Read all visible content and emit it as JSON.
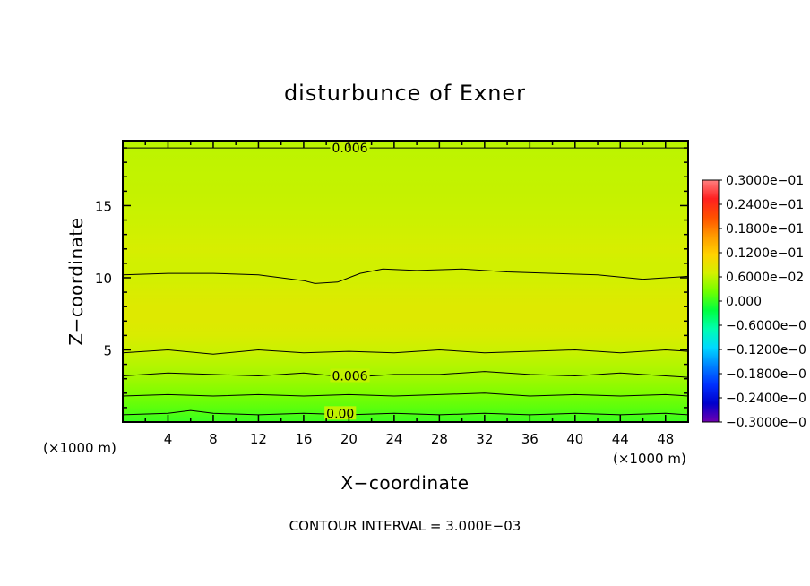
{
  "chart_data": {
    "type": "heatmap",
    "title": "disturbunce of Exner",
    "xlabel": "X−coordinate",
    "ylabel": "Z−coordinate",
    "x_unit_left": "(×1000 m)",
    "x_unit_right": "(×1000 m)",
    "xlim": [
      0,
      50
    ],
    "ylim": [
      0,
      19.5
    ],
    "x_ticks": [
      4,
      8,
      12,
      16,
      20,
      24,
      28,
      32,
      36,
      40,
      44,
      48
    ],
    "y_ticks": [
      5,
      10,
      15
    ],
    "contour_labels": [
      {
        "text": "0.006",
        "x": 18.5,
        "z": 19.0
      },
      {
        "text": "0.006",
        "x": 18.5,
        "z": 3.2
      },
      {
        "text": "0.00",
        "x": 18,
        "z": 0.6
      }
    ],
    "contour_lines": [
      {
        "x": [
          0,
          4,
          8,
          12,
          16,
          20,
          24,
          28,
          32,
          36,
          40,
          44,
          48,
          50
        ],
        "z": [
          19.0,
          19.0,
          19.0,
          19.0,
          19.0,
          19.0,
          19.0,
          19.0,
          19.0,
          19.0,
          19.0,
          19.0,
          19.0,
          19.0
        ]
      },
      {
        "x": [
          0,
          4,
          8,
          12,
          16,
          17,
          19,
          21,
          23,
          26,
          30,
          34,
          38,
          42,
          46,
          50
        ],
        "z": [
          10.2,
          10.3,
          10.3,
          10.2,
          9.8,
          9.6,
          9.7,
          10.3,
          10.6,
          10.5,
          10.6,
          10.4,
          10.3,
          10.2,
          9.9,
          10.1
        ]
      },
      {
        "x": [
          0,
          4,
          8,
          12,
          16,
          20,
          24,
          28,
          32,
          36,
          40,
          44,
          48,
          50
        ],
        "z": [
          4.8,
          5.0,
          4.7,
          5.0,
          4.8,
          4.9,
          4.8,
          5.0,
          4.8,
          4.9,
          5.0,
          4.8,
          5.0,
          4.9
        ]
      },
      {
        "x": [
          0,
          4,
          8,
          12,
          16,
          20,
          24,
          28,
          32,
          36,
          40,
          44,
          48,
          50
        ],
        "z": [
          3.2,
          3.4,
          3.3,
          3.2,
          3.4,
          3.1,
          3.3,
          3.3,
          3.5,
          3.3,
          3.2,
          3.4,
          3.2,
          3.1
        ]
      },
      {
        "x": [
          0,
          4,
          8,
          12,
          16,
          20,
          24,
          28,
          32,
          36,
          40,
          44,
          48,
          50
        ],
        "z": [
          1.8,
          1.9,
          1.8,
          1.9,
          1.8,
          1.9,
          1.8,
          1.9,
          2.0,
          1.8,
          1.9,
          1.8,
          1.9,
          1.8
        ]
      },
      {
        "x": [
          0,
          4,
          6,
          8,
          12,
          16,
          20,
          24,
          28,
          32,
          36,
          40,
          44,
          48,
          50
        ],
        "z": [
          0.5,
          0.6,
          0.8,
          0.6,
          0.5,
          0.6,
          0.5,
          0.6,
          0.5,
          0.6,
          0.5,
          0.6,
          0.5,
          0.6,
          0.5
        ]
      }
    ],
    "field_profile_by_height": {
      "z": [
        0,
        1,
        2,
        3,
        4,
        5,
        6,
        7,
        8,
        9,
        10,
        11,
        12,
        13,
        14,
        15,
        16,
        17,
        18,
        19,
        19.5
      ],
      "value": [
        0.0,
        0.0015,
        0.003,
        0.0045,
        0.0055,
        0.0065,
        0.0075,
        0.008,
        0.008,
        0.0075,
        0.0068,
        0.0068,
        0.0072,
        0.0068,
        0.0065,
        0.0063,
        0.0062,
        0.0061,
        0.006,
        0.0058,
        0.0055
      ]
    },
    "colorbar": {
      "labels": [
        "0.3000e−01",
        "0.2400e−01",
        "0.1800e−01",
        "0.1200e−01",
        "0.6000e−02",
        "0.000",
        "−0.6000e−0",
        "−0.1200e−0",
        "−0.1800e−0",
        "−0.2400e−0",
        "−0.3000e−0"
      ],
      "vmin": -0.03,
      "vmax": 0.03,
      "colors": [
        "#ff8080",
        "#ff2020",
        "#ff5000",
        "#ff9a00",
        "#ffd200",
        "#d4f000",
        "#70ff00",
        "#00ff40",
        "#00ffb0",
        "#00d8ff",
        "#0080ff",
        "#0030ff",
        "#0000cc",
        "#7000b0"
      ]
    },
    "footer": "CONTOUR INTERVAL = 3.000E−03"
  }
}
